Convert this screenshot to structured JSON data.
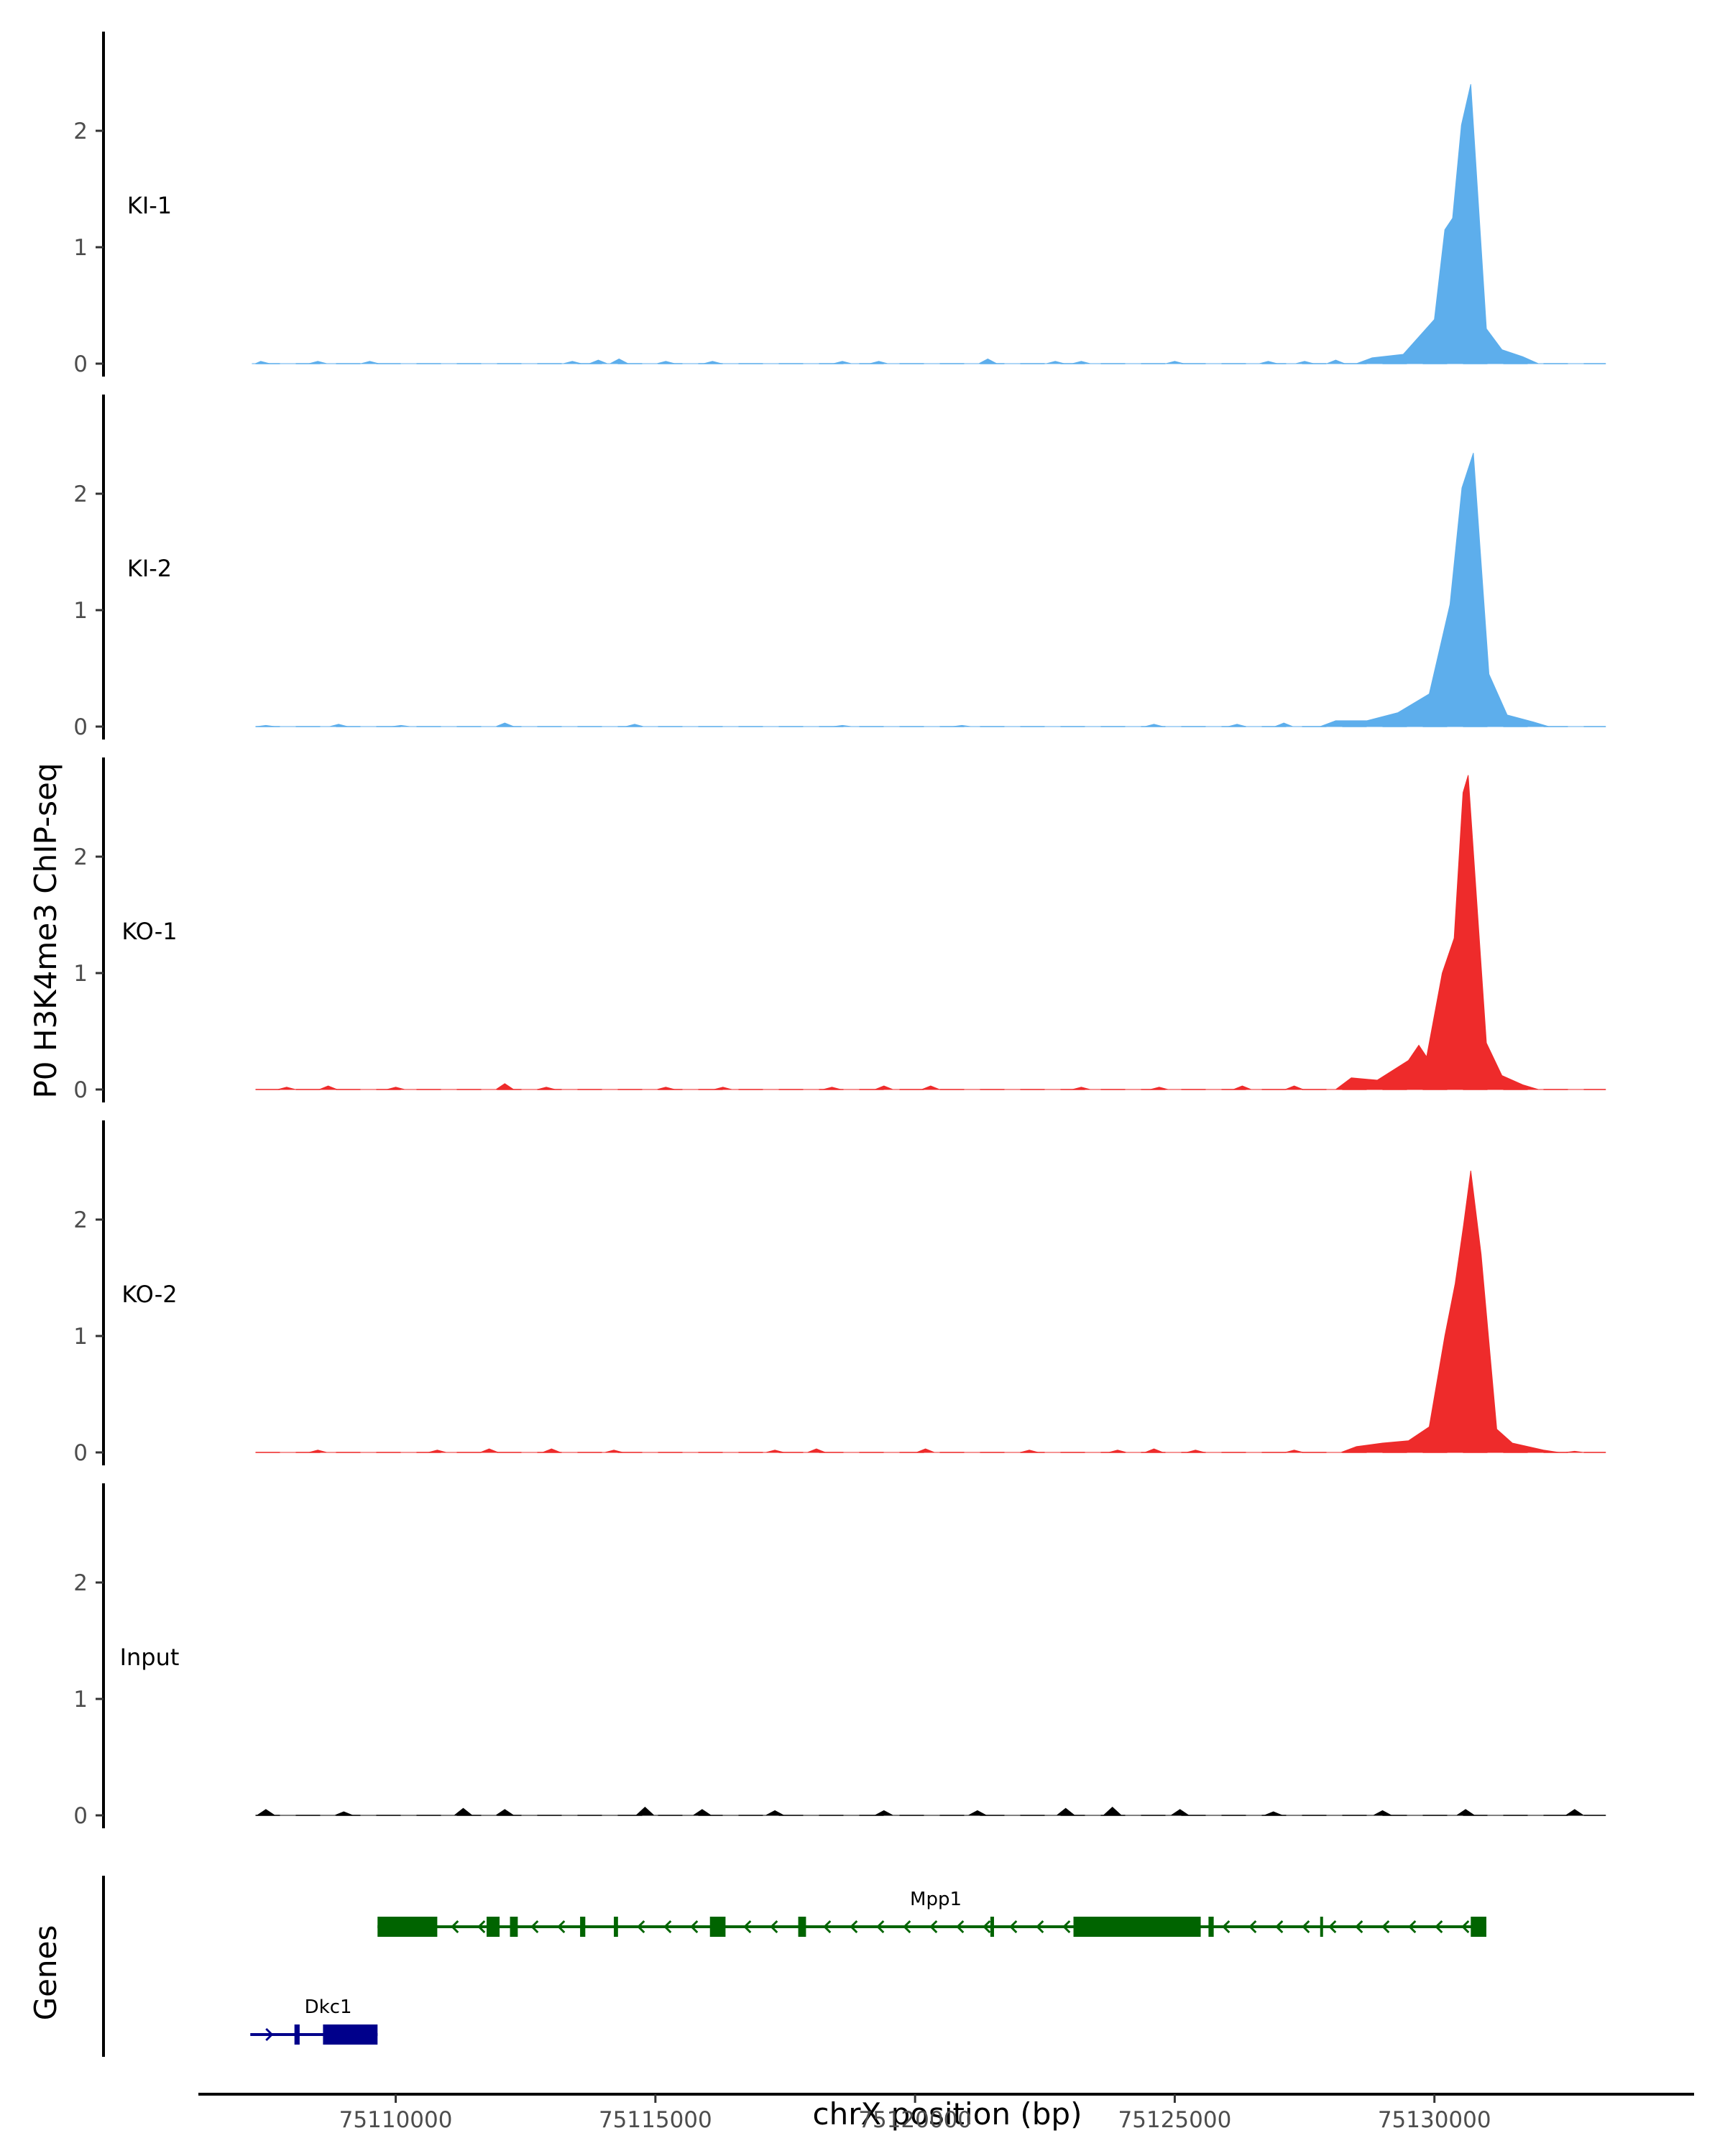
{
  "chart_data": {
    "type": "area",
    "title": "",
    "ylabel": "P0 H3K4me3 ChIP-seq",
    "xlabel": "chrX position (bp)",
    "xlim": [
      75106200,
      75135000
    ],
    "ylim": [
      0,
      2.8
    ],
    "yticks": [
      0,
      1,
      2
    ],
    "xticks": [
      75110000,
      75115000,
      75120000,
      75125000,
      75130000
    ],
    "xtick_labels": [
      "75110000",
      "75115000",
      "75120000",
      "75125000",
      "75130000"
    ],
    "data_start": 75107300,
    "data_end": 75133300,
    "colors": {
      "KI": "#5daeec",
      "KO": "#ee2b2b",
      "Input": "#000000",
      "gene_plus": "#00008b",
      "gene_minus": "#006400"
    },
    "tracks": [
      {
        "name": "KI-1",
        "color": "#5daeec",
        "peaks": [
          [
            75128800,
            0.05
          ],
          [
            75129400,
            0.08
          ],
          [
            75130000,
            0.38
          ],
          [
            75130200,
            1.15
          ],
          [
            75130350,
            1.25
          ],
          [
            75130520,
            2.05
          ],
          [
            75130700,
            2.4
          ],
          [
            75131000,
            0.3
          ],
          [
            75131300,
            0.12
          ],
          [
            75131700,
            0.06
          ]
        ],
        "blips": [
          [
            75107400,
            0.02
          ],
          [
            75108500,
            0.02
          ],
          [
            75109500,
            0.02
          ],
          [
            75113400,
            0.02
          ],
          [
            75113900,
            0.03
          ],
          [
            75114300,
            0.04
          ],
          [
            75115200,
            0.02
          ],
          [
            75116100,
            0.02
          ],
          [
            75118600,
            0.02
          ],
          [
            75119300,
            0.02
          ],
          [
            75121400,
            0.04
          ],
          [
            75122700,
            0.02
          ],
          [
            75123200,
            0.02
          ],
          [
            75125000,
            0.02
          ],
          [
            75126800,
            0.02
          ],
          [
            75127500,
            0.02
          ],
          [
            75128100,
            0.03
          ]
        ]
      },
      {
        "name": "KI-2",
        "color": "#5daeec",
        "peaks": [
          [
            75128100,
            0.05
          ],
          [
            75128700,
            0.05
          ],
          [
            75129300,
            0.12
          ],
          [
            75129900,
            0.28
          ],
          [
            75130300,
            1.05
          ],
          [
            75130530,
            2.05
          ],
          [
            75130750,
            2.35
          ],
          [
            75131050,
            0.45
          ],
          [
            75131400,
            0.1
          ],
          [
            75131900,
            0.04
          ]
        ],
        "blips": [
          [
            75107500,
            0.01
          ],
          [
            75108900,
            0.02
          ],
          [
            75110100,
            0.01
          ],
          [
            75112100,
            0.03
          ],
          [
            75114600,
            0.02
          ],
          [
            75118600,
            0.01
          ],
          [
            75120900,
            0.01
          ],
          [
            75124600,
            0.02
          ],
          [
            75126200,
            0.02
          ],
          [
            75127100,
            0.03
          ]
        ]
      },
      {
        "name": "KO-1",
        "color": "#ee2b2b",
        "peaks": [
          [
            75128400,
            0.1
          ],
          [
            75128900,
            0.08
          ],
          [
            75129500,
            0.25
          ],
          [
            75129700,
            0.38
          ],
          [
            75129850,
            0.28
          ],
          [
            75130150,
            1.0
          ],
          [
            75130380,
            1.3
          ],
          [
            75130550,
            2.55
          ],
          [
            75130650,
            2.7
          ],
          [
            75131000,
            0.4
          ],
          [
            75131300,
            0.12
          ],
          [
            75131700,
            0.04
          ]
        ],
        "blips": [
          [
            75107900,
            0.02
          ],
          [
            75108700,
            0.03
          ],
          [
            75110000,
            0.02
          ],
          [
            75112100,
            0.05
          ],
          [
            75112900,
            0.02
          ],
          [
            75115200,
            0.02
          ],
          [
            75116300,
            0.02
          ],
          [
            75118400,
            0.02
          ],
          [
            75119400,
            0.03
          ],
          [
            75120300,
            0.03
          ],
          [
            75123200,
            0.02
          ],
          [
            75124700,
            0.02
          ],
          [
            75126300,
            0.03
          ],
          [
            75127300,
            0.03
          ]
        ]
      },
      {
        "name": "KO-2",
        "color": "#ee2b2b",
        "peaks": [
          [
            75128500,
            0.05
          ],
          [
            75129000,
            0.08
          ],
          [
            75129500,
            0.1
          ],
          [
            75129900,
            0.22
          ],
          [
            75130200,
            1.0
          ],
          [
            75130400,
            1.45
          ],
          [
            75130560,
            1.95
          ],
          [
            75130700,
            2.42
          ],
          [
            75130900,
            1.7
          ],
          [
            75131200,
            0.2
          ],
          [
            75131500,
            0.08
          ],
          [
            75132100,
            0.02
          ]
        ],
        "blips": [
          [
            75108500,
            0.02
          ],
          [
            75110800,
            0.02
          ],
          [
            75111800,
            0.03
          ],
          [
            75113000,
            0.03
          ],
          [
            75114200,
            0.02
          ],
          [
            75117300,
            0.02
          ],
          [
            75118100,
            0.03
          ],
          [
            75120200,
            0.03
          ],
          [
            75122200,
            0.02
          ],
          [
            75123900,
            0.02
          ],
          [
            75124600,
            0.03
          ],
          [
            75125400,
            0.02
          ],
          [
            75127300,
            0.02
          ],
          [
            75132700,
            0.01
          ]
        ]
      },
      {
        "name": "Input",
        "color": "#000000",
        "peaks": [],
        "blips": [
          [
            75107500,
            0.05
          ],
          [
            75109000,
            0.03
          ],
          [
            75111300,
            0.06
          ],
          [
            75112100,
            0.05
          ],
          [
            75114800,
            0.07
          ],
          [
            75115900,
            0.05
          ],
          [
            75117300,
            0.04
          ],
          [
            75119400,
            0.04
          ],
          [
            75121200,
            0.04
          ],
          [
            75122900,
            0.06
          ],
          [
            75123800,
            0.07
          ],
          [
            75125100,
            0.05
          ],
          [
            75126900,
            0.03
          ],
          [
            75129000,
            0.04
          ],
          [
            75130600,
            0.05
          ],
          [
            75132700,
            0.05
          ]
        ]
      }
    ],
    "genes_label": "Genes",
    "genes": [
      {
        "name": "Mpp1",
        "strand": "-",
        "start": 75109650,
        "end": 75131000,
        "label_x": 75120400,
        "exons": [
          [
            75109650,
            75110800,
            "cds"
          ],
          [
            75111750,
            75112000,
            "cds"
          ],
          [
            75112200,
            75112350,
            "cds"
          ],
          [
            75113550,
            75113650,
            "cds"
          ],
          [
            75114200,
            75114280,
            "cds"
          ],
          [
            75116050,
            75116350,
            "cds"
          ],
          [
            75117750,
            75117900,
            "cds"
          ],
          [
            75121450,
            75121520,
            "cds"
          ],
          [
            75123050,
            75125500,
            "cds"
          ],
          [
            75125650,
            75125750,
            "cds"
          ],
          [
            75127800,
            75127850,
            "cds"
          ],
          [
            75130700,
            75131000,
            "cds"
          ]
        ]
      },
      {
        "name": "Dkc1",
        "strand": "+",
        "start": 75107200,
        "end": 75109650,
        "label_x": 75108700,
        "exons": [
          [
            75108050,
            75108150,
            "cds"
          ],
          [
            75108600,
            75109650,
            "cds"
          ]
        ]
      }
    ]
  }
}
